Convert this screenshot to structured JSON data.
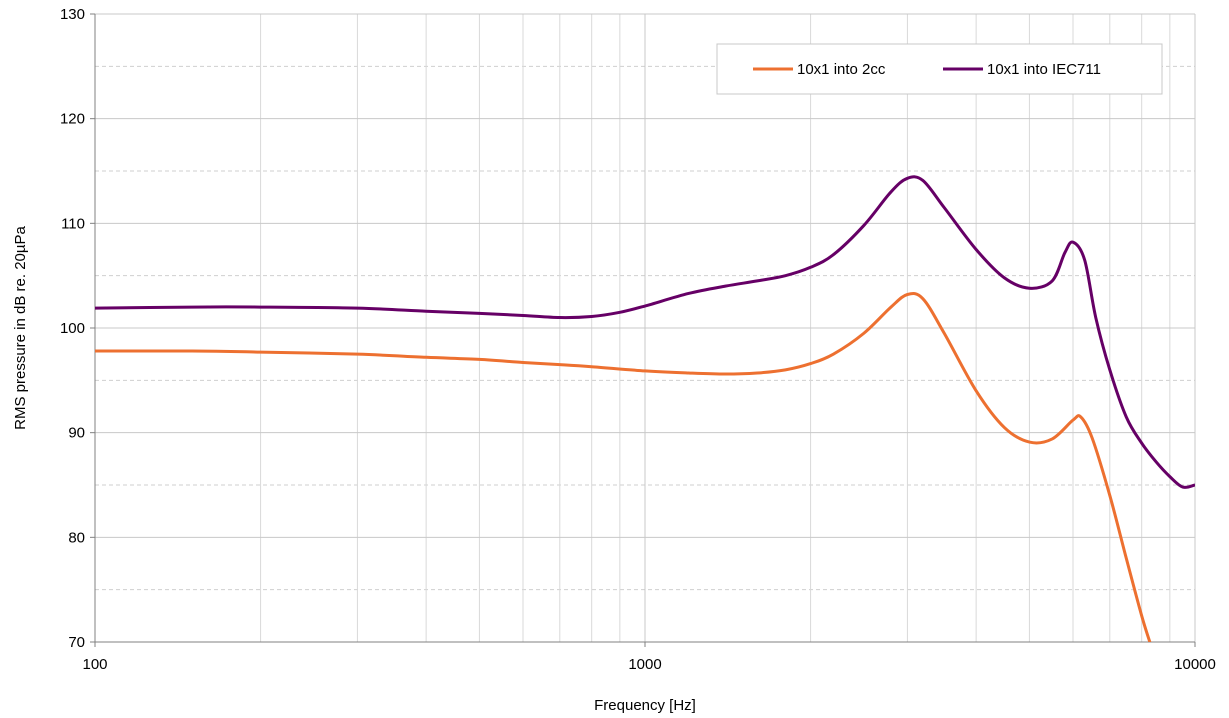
{
  "chart_data": {
    "type": "line",
    "xlabel": "Frequency [Hz]",
    "ylabel": "RMS pressure in dB re. 20µPa",
    "xscale": "log",
    "xlim": [
      100,
      10000
    ],
    "ylim": [
      70,
      130
    ],
    "x_ticks": [
      100,
      1000,
      10000
    ],
    "x_tick_labels": [
      "100",
      "1000",
      "10000"
    ],
    "y_ticks": [
      70,
      80,
      90,
      100,
      110,
      120,
      130
    ],
    "y_tick_labels": [
      "70",
      "80",
      "90",
      "100",
      "110",
      "120",
      "130"
    ],
    "grid": true,
    "legend_position": "top-right",
    "series": [
      {
        "name": "10x1 into 2cc",
        "color": "#ED7030",
        "x": [
          100,
          150,
          200,
          300,
          400,
          500,
          600,
          700,
          800,
          1000,
          1200,
          1400,
          1600,
          1800,
          2000,
          2200,
          2500,
          2800,
          3000,
          3200,
          3500,
          4000,
          4500,
          5000,
          5500,
          6000,
          6200,
          6500,
          7000,
          7500,
          8000,
          8300
        ],
        "y": [
          97.8,
          97.8,
          97.7,
          97.5,
          97.2,
          97.0,
          96.7,
          96.5,
          96.3,
          95.9,
          95.7,
          95.6,
          95.7,
          96.0,
          96.6,
          97.5,
          99.5,
          102.0,
          103.2,
          102.8,
          99.5,
          94.0,
          90.5,
          89.1,
          89.4,
          91.2,
          91.5,
          89.5,
          84.0,
          78.0,
          72.5,
          69.8
        ]
      },
      {
        "name": "10x1 into IEC711",
        "color": "#660066",
        "x": [
          100,
          150,
          200,
          300,
          400,
          500,
          600,
          700,
          800,
          900,
          1000,
          1200,
          1400,
          1600,
          1800,
          2000,
          2200,
          2500,
          2800,
          3000,
          3200,
          3500,
          4000,
          4500,
          5000,
          5500,
          5800,
          6000,
          6300,
          6600,
          7000,
          7500,
          8000,
          8500,
          9000,
          9500,
          10000
        ],
        "y": [
          101.9,
          102.0,
          102.0,
          101.9,
          101.6,
          101.4,
          101.2,
          101.0,
          101.1,
          101.5,
          102.1,
          103.3,
          104.0,
          104.5,
          105.0,
          105.8,
          107.0,
          109.8,
          113.0,
          114.3,
          114.1,
          111.5,
          107.5,
          104.8,
          103.8,
          104.5,
          107.2,
          108.2,
          106.5,
          101.0,
          96.0,
          91.5,
          89.0,
          87.2,
          85.8,
          84.8,
          85.0
        ]
      }
    ]
  }
}
